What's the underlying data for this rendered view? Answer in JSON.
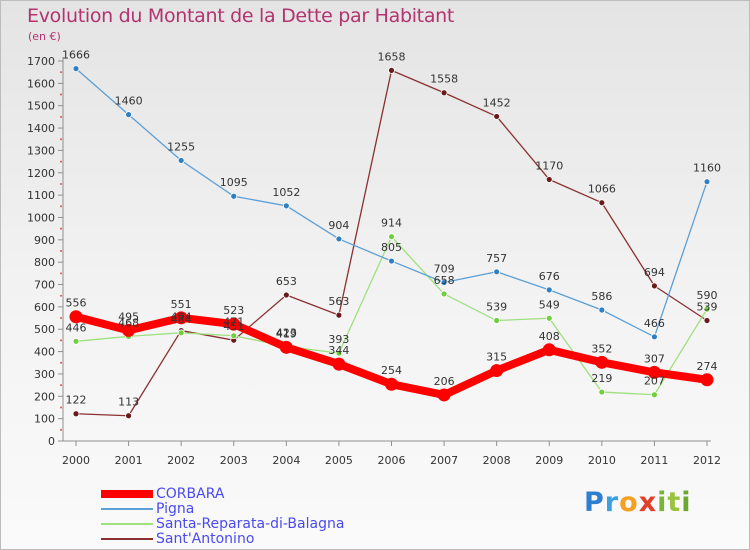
{
  "chart_data": {
    "type": "line",
    "title": "Evolution du Montant de la Dette par Habitant",
    "unit": "(en €)",
    "xlabel": "",
    "ylabel": "",
    "ylim": [
      0,
      1700
    ],
    "yticks": [
      0,
      100,
      200,
      300,
      400,
      500,
      600,
      700,
      800,
      900,
      1000,
      1100,
      1200,
      1300,
      1400,
      1500,
      1600,
      1700
    ],
    "grid": false,
    "legend_position": "bottom-left",
    "categories": [
      "2000",
      "2001",
      "2002",
      "2003",
      "2004",
      "2005",
      "2006",
      "2007",
      "2008",
      "2009",
      "2010",
      "2011",
      "2012"
    ],
    "series": [
      {
        "name": "CORBARA",
        "color": "#ff0000",
        "marker_color": "#ff0000",
        "values": [
          556,
          495,
          551,
          523,
          419,
          344,
          254,
          206,
          315,
          408,
          352,
          307,
          274
        ]
      },
      {
        "name": "Pigna",
        "color": "#5b9fd6",
        "marker_color": "#2f7fc1",
        "values": [
          1666,
          1460,
          1255,
          1095,
          1052,
          904,
          805,
          709,
          757,
          676,
          586,
          466,
          1160
        ]
      },
      {
        "name": "Santa-Reparata-di-Balagna",
        "color": "#9fe07f",
        "marker_color": "#6fcf3f",
        "values": [
          446,
          468,
          484,
          471,
          423,
          393,
          914,
          658,
          539,
          549,
          219,
          207,
          590
        ]
      },
      {
        "name": "Sant'Antonino",
        "color": "#8b3030",
        "marker_color": "#6a1a1a",
        "values": [
          122,
          113,
          494,
          451,
          653,
          563,
          1658,
          1558,
          1452,
          1170,
          1066,
          694,
          539
        ]
      }
    ]
  },
  "logo": {
    "letters": [
      "P",
      "r",
      "o",
      "x",
      "i",
      "t",
      "i"
    ]
  }
}
